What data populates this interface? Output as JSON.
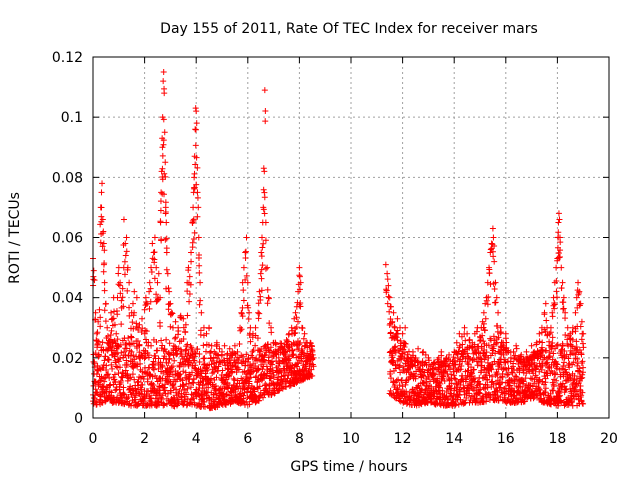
{
  "chart_data": {
    "type": "scatter",
    "title": "Day 155 of 2011, Rate Of TEC Index for receiver mars",
    "xlabel": "GPS time / hours",
    "ylabel": "ROTI / TECUs",
    "xlim": [
      0,
      20
    ],
    "ylim": [
      0,
      0.12
    ],
    "xticks": [
      "0",
      "2",
      "4",
      "6",
      "8",
      "10",
      "12",
      "14",
      "16",
      "18",
      "20"
    ],
    "yticks": [
      "0",
      "0.02",
      "0.04",
      "0.06",
      "0.08",
      "0.1",
      "0.12"
    ],
    "grid": true,
    "marker": "+",
    "color": "#ff0000",
    "series": [
      {
        "name": "ROTI",
        "points": [
          [
            0.0,
            0.053
          ],
          [
            0.03,
            0.049
          ],
          [
            0.1,
            0.035
          ],
          [
            0.15,
            0.028
          ],
          [
            0.2,
            0.032
          ],
          [
            0.25,
            0.036
          ],
          [
            0.3,
            0.07
          ],
          [
            0.33,
            0.075
          ],
          [
            0.35,
            0.078
          ],
          [
            0.38,
            0.066
          ],
          [
            0.4,
            0.062
          ],
          [
            0.42,
            0.058
          ],
          [
            0.45,
            0.045
          ],
          [
            0.5,
            0.038
          ],
          [
            0.55,
            0.03
          ],
          [
            0.6,
            0.025
          ],
          [
            0.7,
            0.035
          ],
          [
            0.75,
            0.033
          ],
          [
            0.8,
            0.04
          ],
          [
            0.85,
            0.031
          ],
          [
            0.9,
            0.028
          ],
          [
            0.95,
            0.04
          ],
          [
            1.0,
            0.05
          ],
          [
            1.05,
            0.045
          ],
          [
            1.1,
            0.039
          ],
          [
            1.15,
            0.043
          ],
          [
            1.2,
            0.066
          ],
          [
            1.25,
            0.058
          ],
          [
            1.3,
            0.06
          ],
          [
            1.35,
            0.05
          ],
          [
            1.4,
            0.045
          ],
          [
            1.5,
            0.035
          ],
          [
            1.55,
            0.038
          ],
          [
            1.6,
            0.042
          ],
          [
            1.7,
            0.04
          ],
          [
            1.75,
            0.03
          ],
          [
            1.8,
            0.031
          ],
          [
            1.9,
            0.033
          ],
          [
            2.0,
            0.036
          ],
          [
            2.05,
            0.04
          ],
          [
            2.1,
            0.038
          ],
          [
            2.2,
            0.045
          ],
          [
            2.25,
            0.05
          ],
          [
            2.3,
            0.058
          ],
          [
            2.35,
            0.055
          ],
          [
            2.4,
            0.06
          ],
          [
            2.45,
            0.05
          ],
          [
            2.5,
            0.045
          ],
          [
            2.55,
            0.048
          ],
          [
            2.6,
            0.04
          ],
          [
            2.62,
            0.065
          ],
          [
            2.64,
            0.075
          ],
          [
            2.66,
            0.082
          ],
          [
            2.68,
            0.093
          ],
          [
            2.7,
            0.1
          ],
          [
            2.72,
            0.112
          ],
          [
            2.74,
            0.115
          ],
          [
            2.76,
            0.108
          ],
          [
            2.78,
            0.095
          ],
          [
            2.8,
            0.085
          ],
          [
            2.82,
            0.07
          ],
          [
            2.84,
            0.065
          ],
          [
            2.86,
            0.055
          ],
          [
            2.9,
            0.048
          ],
          [
            2.95,
            0.042
          ],
          [
            3.0,
            0.038
          ],
          [
            3.05,
            0.035
          ],
          [
            3.1,
            0.03
          ],
          [
            3.2,
            0.032
          ],
          [
            3.3,
            0.03
          ],
          [
            3.4,
            0.034
          ],
          [
            3.5,
            0.033
          ],
          [
            3.6,
            0.031
          ],
          [
            3.65,
            0.045
          ],
          [
            3.7,
            0.05
          ],
          [
            3.75,
            0.047
          ],
          [
            3.8,
            0.055
          ],
          [
            3.85,
            0.065
          ],
          [
            3.88,
            0.07
          ],
          [
            3.9,
            0.075
          ],
          [
            3.92,
            0.08
          ],
          [
            3.94,
            0.087
          ],
          [
            3.96,
            0.096
          ],
          [
            3.98,
            0.103
          ],
          [
            4.0,
            0.102
          ],
          [
            4.02,
            0.098
          ],
          [
            4.05,
            0.075
          ],
          [
            4.08,
            0.07
          ],
          [
            4.1,
            0.06
          ],
          [
            4.15,
            0.045
          ],
          [
            4.2,
            0.035
          ],
          [
            4.3,
            0.03
          ],
          [
            4.4,
            0.028
          ],
          [
            4.5,
            0.03
          ],
          [
            4.6,
            0.024
          ],
          [
            4.7,
            0.022
          ],
          [
            4.8,
            0.025
          ],
          [
            4.9,
            0.023
          ],
          [
            5.0,
            0.022
          ],
          [
            5.1,
            0.024
          ],
          [
            5.2,
            0.021
          ],
          [
            5.3,
            0.023
          ],
          [
            5.4,
            0.022
          ],
          [
            5.5,
            0.024
          ],
          [
            5.6,
            0.022
          ],
          [
            5.7,
            0.03
          ],
          [
            5.75,
            0.035
          ],
          [
            5.8,
            0.045
          ],
          [
            5.85,
            0.05
          ],
          [
            5.9,
            0.055
          ],
          [
            5.95,
            0.06
          ],
          [
            6.0,
            0.045
          ],
          [
            6.05,
            0.035
          ],
          [
            6.1,
            0.03
          ],
          [
            6.2,
            0.028
          ],
          [
            6.3,
            0.03
          ],
          [
            6.4,
            0.035
          ],
          [
            6.45,
            0.042
          ],
          [
            6.5,
            0.048
          ],
          [
            6.52,
            0.055
          ],
          [
            6.55,
            0.06
          ],
          [
            6.58,
            0.065
          ],
          [
            6.6,
            0.07
          ],
          [
            6.62,
            0.083
          ],
          [
            6.64,
            0.082
          ],
          [
            6.66,
            0.109
          ],
          [
            6.7,
            0.065
          ],
          [
            6.75,
            0.05
          ],
          [
            6.8,
            0.04
          ],
          [
            6.9,
            0.03
          ],
          [
            7.0,
            0.025
          ],
          [
            7.1,
            0.022
          ],
          [
            7.2,
            0.02
          ],
          [
            7.4,
            0.022
          ],
          [
            7.5,
            0.025
          ],
          [
            7.6,
            0.028
          ],
          [
            7.7,
            0.03
          ],
          [
            7.8,
            0.033
          ],
          [
            7.85,
            0.035
          ],
          [
            7.9,
            0.037
          ],
          [
            7.95,
            0.042
          ],
          [
            8.0,
            0.05
          ],
          [
            8.02,
            0.047
          ],
          [
            8.05,
            0.045
          ],
          [
            8.1,
            0.03
          ],
          [
            8.2,
            0.028
          ],
          [
            8.3,
            0.025
          ],
          [
            8.4,
            0.024
          ],
          [
            8.5,
            0.022
          ],
          [
            8.55,
            0.02
          ],
          [
            11.35,
            0.051
          ],
          [
            11.4,
            0.048
          ],
          [
            11.45,
            0.044
          ],
          [
            11.5,
            0.04
          ],
          [
            11.55,
            0.037
          ],
          [
            11.6,
            0.032
          ],
          [
            11.65,
            0.035
          ],
          [
            11.7,
            0.03
          ],
          [
            11.75,
            0.028
          ],
          [
            11.8,
            0.033
          ],
          [
            11.9,
            0.03
          ],
          [
            12.0,
            0.028
          ],
          [
            12.05,
            0.025
          ],
          [
            12.1,
            0.03
          ],
          [
            12.2,
            0.02
          ],
          [
            12.3,
            0.018
          ],
          [
            12.4,
            0.022
          ],
          [
            12.5,
            0.02
          ],
          [
            12.6,
            0.023
          ],
          [
            12.7,
            0.018
          ],
          [
            12.8,
            0.022
          ],
          [
            12.9,
            0.021
          ],
          [
            13.0,
            0.02
          ],
          [
            13.2,
            0.018
          ],
          [
            13.4,
            0.02
          ],
          [
            13.5,
            0.022
          ],
          [
            13.6,
            0.019
          ],
          [
            13.8,
            0.021
          ],
          [
            14.0,
            0.022
          ],
          [
            14.1,
            0.025
          ],
          [
            14.2,
            0.028
          ],
          [
            14.3,
            0.027
          ],
          [
            14.4,
            0.03
          ],
          [
            14.5,
            0.028
          ],
          [
            14.6,
            0.026
          ],
          [
            14.7,
            0.025
          ],
          [
            14.8,
            0.028
          ],
          [
            14.9,
            0.03
          ],
          [
            15.0,
            0.027
          ],
          [
            15.05,
            0.03
          ],
          [
            15.1,
            0.032
          ],
          [
            15.15,
            0.035
          ],
          [
            15.2,
            0.038
          ],
          [
            15.25,
            0.04
          ],
          [
            15.3,
            0.045
          ],
          [
            15.35,
            0.05
          ],
          [
            15.4,
            0.055
          ],
          [
            15.45,
            0.058
          ],
          [
            15.5,
            0.063
          ],
          [
            15.52,
            0.06
          ],
          [
            15.55,
            0.052
          ],
          [
            15.6,
            0.045
          ],
          [
            15.65,
            0.04
          ],
          [
            15.7,
            0.035
          ],
          [
            15.8,
            0.03
          ],
          [
            15.9,
            0.025
          ],
          [
            16.0,
            0.028
          ],
          [
            16.1,
            0.022
          ],
          [
            16.2,
            0.02
          ],
          [
            16.3,
            0.022
          ],
          [
            16.4,
            0.024
          ],
          [
            16.5,
            0.02
          ],
          [
            16.6,
            0.021
          ],
          [
            16.7,
            0.019
          ],
          [
            16.8,
            0.022
          ],
          [
            16.9,
            0.02
          ],
          [
            17.0,
            0.024
          ],
          [
            17.1,
            0.022
          ],
          [
            17.2,
            0.025
          ],
          [
            17.3,
            0.028
          ],
          [
            17.4,
            0.03
          ],
          [
            17.5,
            0.035
          ],
          [
            17.55,
            0.038
          ],
          [
            17.6,
            0.03
          ],
          [
            17.7,
            0.028
          ],
          [
            17.75,
            0.03
          ],
          [
            17.8,
            0.035
          ],
          [
            17.85,
            0.04
          ],
          [
            17.9,
            0.045
          ],
          [
            17.95,
            0.05
          ],
          [
            18.0,
            0.053
          ],
          [
            18.02,
            0.06
          ],
          [
            18.04,
            0.065
          ],
          [
            18.06,
            0.068
          ],
          [
            18.08,
            0.066
          ],
          [
            18.1,
            0.06
          ],
          [
            18.15,
            0.05
          ],
          [
            18.2,
            0.045
          ],
          [
            18.25,
            0.04
          ],
          [
            18.3,
            0.035
          ],
          [
            18.4,
            0.03
          ],
          [
            18.5,
            0.028
          ],
          [
            18.6,
            0.03
          ],
          [
            18.7,
            0.035
          ],
          [
            18.75,
            0.04
          ],
          [
            18.8,
            0.045
          ],
          [
            18.85,
            0.042
          ],
          [
            18.9,
            0.038
          ],
          [
            18.95,
            0.032
          ],
          [
            19.0,
            0.028
          ]
        ],
        "base_envelope": [
          [
            0.0,
            0.004,
            0.024
          ],
          [
            0.5,
            0.005,
            0.026
          ],
          [
            1.0,
            0.005,
            0.027
          ],
          [
            1.5,
            0.004,
            0.027
          ],
          [
            2.0,
            0.004,
            0.026
          ],
          [
            2.5,
            0.004,
            0.028
          ],
          [
            3.0,
            0.003,
            0.025
          ],
          [
            3.5,
            0.004,
            0.026
          ],
          [
            4.0,
            0.004,
            0.023
          ],
          [
            4.5,
            0.003,
            0.022
          ],
          [
            5.0,
            0.004,
            0.021
          ],
          [
            5.5,
            0.005,
            0.022
          ],
          [
            6.0,
            0.004,
            0.022
          ],
          [
            6.5,
            0.006,
            0.024
          ],
          [
            7.0,
            0.008,
            0.025
          ],
          [
            7.5,
            0.01,
            0.026
          ],
          [
            8.0,
            0.012,
            0.026
          ],
          [
            8.5,
            0.014,
            0.025
          ],
          [
            11.5,
            0.008,
            0.032
          ],
          [
            12.0,
            0.005,
            0.024
          ],
          [
            12.5,
            0.004,
            0.02
          ],
          [
            13.0,
            0.005,
            0.018
          ],
          [
            13.5,
            0.004,
            0.02
          ],
          [
            14.0,
            0.004,
            0.022
          ],
          [
            14.5,
            0.005,
            0.024
          ],
          [
            15.0,
            0.005,
            0.026
          ],
          [
            15.5,
            0.006,
            0.028
          ],
          [
            16.0,
            0.005,
            0.024
          ],
          [
            16.5,
            0.005,
            0.02
          ],
          [
            17.0,
            0.006,
            0.022
          ],
          [
            17.5,
            0.005,
            0.024
          ],
          [
            18.0,
            0.004,
            0.026
          ],
          [
            18.5,
            0.004,
            0.028
          ],
          [
            19.0,
            0.004,
            0.024
          ]
        ]
      }
    ]
  }
}
